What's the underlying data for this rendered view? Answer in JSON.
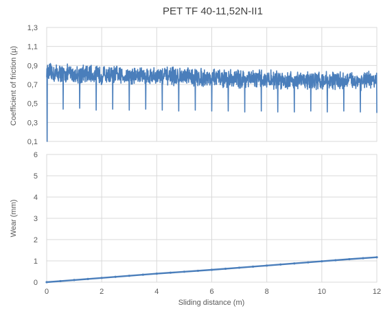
{
  "chart_data": [
    {
      "type": "line",
      "title": "PET TF 40-11,52N-II1",
      "xlabel": "",
      "ylabel": "Coefficient of friction (µ)",
      "xlim": [
        0,
        12
      ],
      "ylim": [
        0.1,
        1.3
      ],
      "x_ticks": [
        "0",
        "2",
        "4",
        "6",
        "8",
        "10",
        "12"
      ],
      "y_ticks": [
        "0,1",
        "0,3",
        "0,5",
        "0,7",
        "0,9",
        "1,1",
        "1,3"
      ],
      "grid": true,
      "color": "#4a7ebb",
      "series": [
        {
          "name": "",
          "baseline": [
            [
              0,
              0.82
            ],
            [
              2,
              0.8
            ],
            [
              4,
              0.79
            ],
            [
              6,
              0.77
            ],
            [
              8,
              0.75
            ],
            [
              10,
              0.74
            ],
            [
              12,
              0.74
            ]
          ],
          "noise_amplitude": 0.08,
          "dip_x": [
            0.02,
            0.6,
            1.2,
            1.8,
            2.4,
            3.0,
            3.6,
            4.2,
            4.8,
            5.4,
            6.0,
            6.6,
            7.2,
            7.8,
            8.4,
            9.0,
            9.6,
            10.2,
            10.8,
            11.4,
            12.0
          ],
          "dip_y": [
            0.1,
            0.44,
            0.45,
            0.43,
            0.44,
            0.43,
            0.44,
            0.43,
            0.42,
            0.43,
            0.42,
            0.42,
            0.41,
            0.42,
            0.41,
            0.41,
            0.42,
            0.41,
            0.42,
            0.41,
            0.4
          ]
        }
      ]
    },
    {
      "type": "line",
      "title": "",
      "xlabel": "Sliding distance (m)",
      "ylabel": "Wear (mm)",
      "xlim": [
        0,
        12
      ],
      "ylim": [
        0,
        6
      ],
      "x_ticks": [
        "0",
        "2",
        "4",
        "6",
        "8",
        "10",
        "12"
      ],
      "y_ticks": [
        "0",
        "1",
        "2",
        "3",
        "4",
        "5",
        "6"
      ],
      "grid": true,
      "color": "#4a7ebb",
      "series": [
        {
          "name": "",
          "x": [
            0,
            1,
            2,
            3,
            4,
            5,
            6,
            7,
            8,
            9,
            10,
            11,
            12
          ],
          "y": [
            0.0,
            0.1,
            0.2,
            0.3,
            0.4,
            0.49,
            0.58,
            0.68,
            0.78,
            0.88,
            0.98,
            1.08,
            1.17
          ]
        }
      ]
    }
  ]
}
